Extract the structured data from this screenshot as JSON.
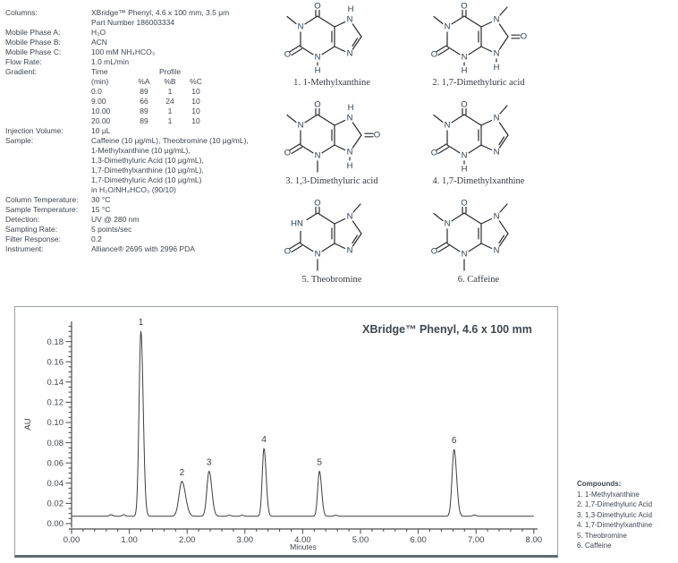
{
  "method": {
    "rows": [
      {
        "label": "Columns:",
        "value": "XBridge™ Phenyl, 4.6 x 100 mm, 3.5 μm"
      },
      {
        "label": "",
        "value": "Part Number 186003334"
      },
      {
        "label": "Mobile Phase A:",
        "value": "H₂O"
      },
      {
        "label": "Mobile Phase B:",
        "value": "ACN"
      },
      {
        "label": "Mobile Phase C:",
        "value": "100 mM NH₄HCO₃"
      },
      {
        "label": "Flow Rate:",
        "value": "1.0 mL/min"
      },
      {
        "label": "Gradient:",
        "type": "gradient",
        "table": {
          "header1": [
            "Time",
            "",
            "Profile",
            ""
          ],
          "header2": [
            "(min)",
            "%A",
            "%B",
            "%C"
          ],
          "rows": [
            [
              "0.0",
              "89",
              "1",
              "10"
            ],
            [
              "9.00",
              "66",
              "24",
              "10"
            ],
            [
              "10.00",
              "89",
              "1",
              "10"
            ],
            [
              "20.00",
              "89",
              "1",
              "10"
            ]
          ]
        }
      },
      {
        "label": "Injection Volume:",
        "value": "10 μL"
      },
      {
        "label": "Sample:",
        "type": "multiline",
        "lines": [
          "Caffeine (10 μg/mL), Theobromine (10 μg/mL),",
          "1-Methylxanthine (10 μg/mL),",
          "1,3-Dimethyluric Acid (10 μg/mL),",
          "1,7-Dimethylxanthine (10 μg/mL),",
          "1,7-Dimethyluric Acid (10 μg/mL)",
          "in H₂O/NH₄HCO₃ (90/10)"
        ]
      },
      {
        "label": "Column Temperature:",
        "value": "30 °C"
      },
      {
        "label": "Sample Temperature:",
        "value": "15 °C"
      },
      {
        "label": "Detection:",
        "value": "UV @ 280 nm"
      },
      {
        "label": "Sampling Rate:",
        "value": "5 points/sec"
      },
      {
        "label": "Filter Response:",
        "value": "0.2"
      },
      {
        "label": "Instrument:",
        "value": "Alliance® 2695 with 2996 PDA"
      }
    ]
  },
  "structures": {
    "items": [
      {
        "num": "1.",
        "name": "1-Methylxanthine",
        "n1": "CH3",
        "n3": "H",
        "n7": "H",
        "c8": "N"
      },
      {
        "num": "2.",
        "name": "1,7-Dimethyluric acid",
        "n1": "CH3",
        "n3": "H",
        "n7": "CH3",
        "c8": "O"
      },
      {
        "num": "3.",
        "name": "1,3-Dimethyluric acid",
        "n1": "CH3",
        "n3": "CH3",
        "n7": "H",
        "c8": "O"
      },
      {
        "num": "4.",
        "name": "1,7-Dimethylxanthine",
        "n1": "CH3",
        "n3": "H",
        "n7": "CH3",
        "c8": "N"
      },
      {
        "num": "5.",
        "name": "Theobromine",
        "n1": "H",
        "n3": "CH3",
        "n7": "CH3",
        "c8": "N"
      },
      {
        "num": "6.",
        "name": "Caffeine",
        "n1": "CH3",
        "n3": "CH3",
        "n7": "CH3",
        "c8": "N"
      }
    ]
  },
  "chart_data": {
    "type": "line",
    "title": "XBridge™ Phenyl, 4.6 x 100 mm",
    "xlabel": "Minutes",
    "ylabel": "AU",
    "xlim": [
      0,
      8
    ],
    "ylim": [
      0,
      0.19
    ],
    "x_ticks": [
      "0.00",
      "1.00",
      "2.00",
      "3.00",
      "4.00",
      "5.00",
      "6.00",
      "7.00",
      "8.00"
    ],
    "y_ticks": [
      "0.00",
      "0.02",
      "0.04",
      "0.06",
      "0.08",
      "0.10",
      "0.12",
      "0.14",
      "0.16",
      "0.18"
    ],
    "x_minor_step_min": 0.2,
    "y_minor_step_au": 0.005,
    "grid": false,
    "baseline_au": 0.0073,
    "peaks": [
      {
        "label": "1",
        "rt_min": 1.2,
        "height_au": 0.183,
        "sigma_min": 0.032
      },
      {
        "label": "2",
        "rt_min": 1.91,
        "height_au": 0.0345,
        "sigma_min": 0.05
      },
      {
        "label": "3",
        "rt_min": 2.38,
        "height_au": 0.0445,
        "sigma_min": 0.038
      },
      {
        "label": "4",
        "rt_min": 3.33,
        "height_au": 0.067,
        "sigma_min": 0.03
      },
      {
        "label": "5",
        "rt_min": 4.29,
        "height_au": 0.0445,
        "sigma_min": 0.03
      },
      {
        "label": "6",
        "rt_min": 6.62,
        "height_au": 0.066,
        "sigma_min": 0.035
      }
    ],
    "noise_bumps": [
      {
        "rt_min": 0.68,
        "height_au": 0.0015
      },
      {
        "rt_min": 0.9,
        "height_au": 0.0015
      },
      {
        "rt_min": 2.73,
        "height_au": 0.001
      },
      {
        "rt_min": 2.95,
        "height_au": 0.001
      },
      {
        "rt_min": 4.57,
        "height_au": 0.001
      },
      {
        "rt_min": 6.97,
        "height_au": 0.0012
      }
    ]
  },
  "compounds": {
    "heading": "Compounds:",
    "items": [
      "1. 1-Methylxanthine",
      "2. 1,7-Dimethyluric Acid",
      "3. 1,3-Dimethyluric Acid",
      "4. 1,7-Dimethylxanthine",
      "5. Theobromine",
      "6. Caffeine"
    ]
  },
  "colors": {
    "text": "#3d4752",
    "atom_letter": "#24425f",
    "bond": "#2b2b2b",
    "trace": "#3f3f3f",
    "axis": "#4a4a4a",
    "box_border": "#9aa1a8",
    "box_border_bottom": "#5f6b74"
  }
}
